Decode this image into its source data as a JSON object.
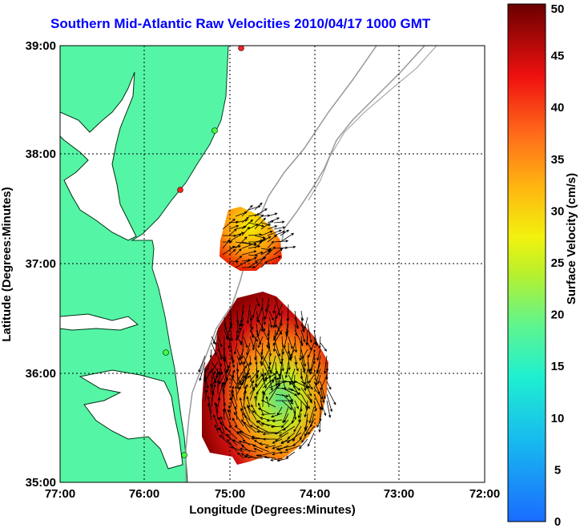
{
  "title": "Southern Mid-Atlantic Raw Velocities 2010/04/17 1000 GMT",
  "xlabel": "Longitude (Degrees:Minutes)",
  "ylabel": "Latitude (Degrees:Minutes)",
  "x_ticks": [
    "77:00",
    "76:00",
    "75:00",
    "74:00",
    "73:00",
    "72:00"
  ],
  "y_ticks": [
    "39:00",
    "38:00",
    "37:00",
    "36:00",
    "35:00"
  ],
  "colorbar": {
    "label": "Surface Velocity (cm/s)",
    "ticks": [
      "50",
      "45",
      "40",
      "35",
      "30",
      "25",
      "20",
      "15",
      "10",
      "5",
      "0"
    ],
    "range": [
      0,
      50
    ]
  },
  "colors": {
    "land": "#55f5a6",
    "title": "#0000ff",
    "grid": "#000000",
    "bathymetry": "#999999"
  }
}
